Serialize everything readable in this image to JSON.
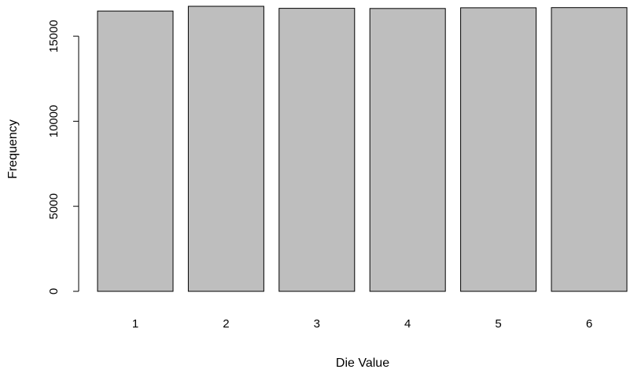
{
  "chart_data": {
    "type": "bar",
    "title": "",
    "xlabel": "Die Value",
    "ylabel": "Frequency",
    "categories": [
      "1",
      "2",
      "3",
      "4",
      "5",
      "6"
    ],
    "values": [
      16480,
      16760,
      16640,
      16630,
      16670,
      16680
    ],
    "ylim": [
      0,
      16760
    ],
    "yticks": [
      0,
      5000,
      10000,
      15000
    ],
    "ytick_labels": [
      "0",
      "5000",
      "10000",
      "15000"
    ],
    "bar_color": "#bebebe",
    "bar_edge_color": "#000000",
    "grid": false,
    "legend": "none"
  }
}
